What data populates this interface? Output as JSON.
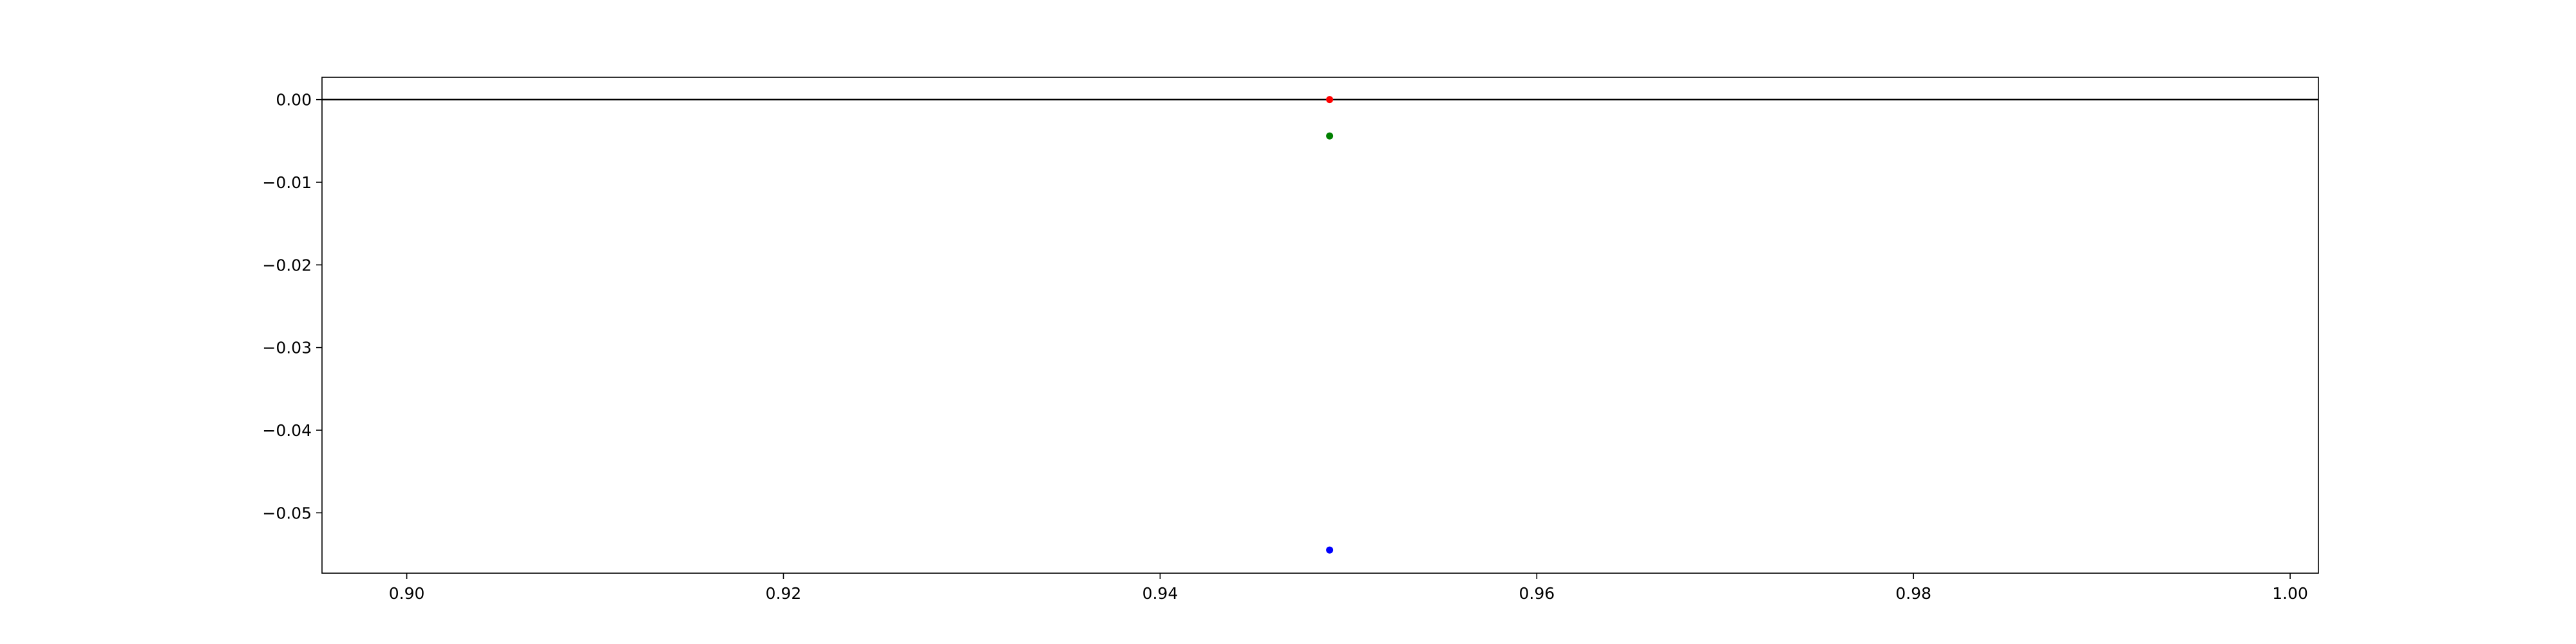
{
  "chart_data": {
    "type": "scatter",
    "title": "",
    "xlabel": "",
    "ylabel": "",
    "xlim": [
      0.8955,
      1.0015
    ],
    "ylim": [
      -0.0573,
      0.0027
    ],
    "grid": false,
    "legend": "none",
    "x_ticks": [
      0.9,
      0.92,
      0.94,
      0.96,
      0.98,
      1.0
    ],
    "x_tick_labels": [
      "0.90",
      "0.92",
      "0.94",
      "0.96",
      "0.98",
      "1.00"
    ],
    "y_ticks": [
      0.0,
      -0.01,
      -0.02,
      -0.03,
      -0.04,
      -0.05
    ],
    "y_tick_labels": [
      "0.00",
      "−0.01",
      "−0.02",
      "−0.03",
      "−0.04",
      "−0.05"
    ],
    "hlines": [
      {
        "y": 0.0,
        "color": "#000000"
      }
    ],
    "series": [
      {
        "color": "#ff0000",
        "points": [
          {
            "x": 0.949,
            "y": 0.0
          }
        ]
      },
      {
        "color": "#008000",
        "points": [
          {
            "x": 0.949,
            "y": -0.0044
          }
        ]
      },
      {
        "color": "#0000ff",
        "points": [
          {
            "x": 0.949,
            "y": -0.0545
          }
        ]
      }
    ]
  }
}
